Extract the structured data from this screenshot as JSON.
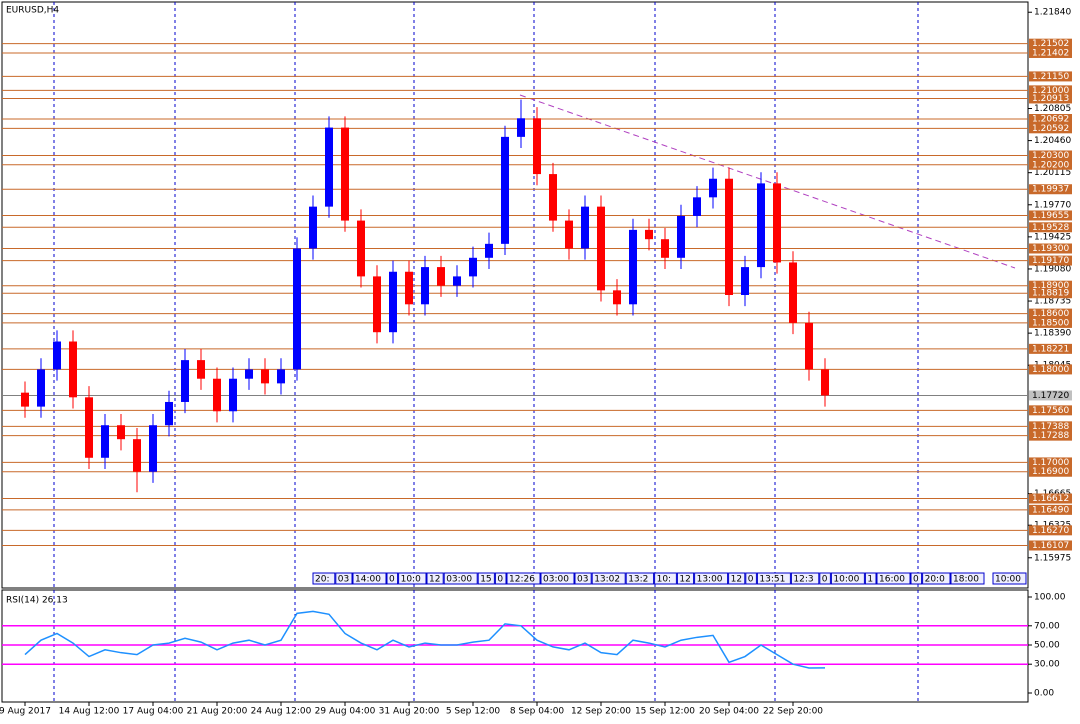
{
  "chart_data": {
    "type": "candlestick",
    "title": "EURUSD,H4",
    "categories": [
      "9 Aug 2017",
      null,
      null,
      null,
      "14 Aug 12:00",
      null,
      null,
      null,
      "17 Aug 04:00",
      null,
      null,
      null,
      "21 Aug 20:00",
      null,
      null,
      null,
      "24 Aug 12:00",
      null,
      null,
      null,
      "29 Aug 04:00",
      null,
      null,
      null,
      "31 Aug 20:00",
      null,
      null,
      null,
      "5 Sep 12:00",
      null,
      null,
      null,
      "8 Sep 04:00",
      null,
      null,
      null,
      "12 Sep 20:00",
      null,
      null,
      null,
      "15 Sep 12:00",
      null,
      null,
      null,
      "20 Sep 04:00",
      null,
      null,
      null,
      "22 Sep 20:00",
      null,
      null
    ],
    "open": [
      1.1775,
      1.176,
      1.18,
      1.183,
      1.177,
      1.1705,
      1.174,
      1.1725,
      1.169,
      1.174,
      1.1765,
      1.181,
      1.179,
      1.1755,
      1.179,
      1.18,
      1.1785,
      1.18,
      1.193,
      1.1975,
      1.206,
      1.196,
      1.19,
      1.184,
      1.1905,
      1.187,
      1.191,
      1.189,
      1.19,
      1.192,
      1.1935,
      1.205,
      1.207,
      1.201,
      1.196,
      1.193,
      1.1975,
      1.1885,
      1.187,
      1.195,
      1.194,
      1.192,
      1.1965,
      1.1985,
      1.2005,
      1.188,
      1.191,
      1.2,
      1.1915,
      1.185,
      1.18
    ],
    "high": [
      1.1787,
      1.1812,
      1.1842,
      1.1842,
      1.1782,
      1.1752,
      1.1752,
      1.1737,
      1.1752,
      1.1777,
      1.1822,
      1.1822,
      1.1802,
      1.1802,
      1.1812,
      1.1812,
      1.1812,
      1.1942,
      1.1987,
      1.2072,
      1.2072,
      1.1972,
      1.1912,
      1.1917,
      1.1917,
      1.1922,
      1.1922,
      1.1912,
      1.1932,
      1.1947,
      1.2062,
      1.209,
      1.2082,
      1.2022,
      1.1972,
      1.1987,
      1.1987,
      1.1897,
      1.1962,
      1.1962,
      1.1952,
      1.1977,
      1.1997,
      1.2017,
      1.2017,
      1.1922,
      1.2012,
      1.2012,
      1.1927,
      1.1862,
      1.1812
    ],
    "low": [
      1.1748,
      1.1748,
      1.1788,
      1.1758,
      1.1693,
      1.1693,
      1.1713,
      1.1668,
      1.1678,
      1.1728,
      1.1753,
      1.1778,
      1.1743,
      1.1743,
      1.1778,
      1.1773,
      1.1773,
      1.1788,
      1.1918,
      1.1963,
      1.1948,
      1.1888,
      1.1828,
      1.1828,
      1.1858,
      1.1858,
      1.1878,
      1.1878,
      1.1888,
      1.1908,
      1.1923,
      1.2038,
      1.1998,
      1.1948,
      1.1918,
      1.1918,
      1.1873,
      1.1858,
      1.1858,
      1.1928,
      1.1908,
      1.1908,
      1.1953,
      1.1973,
      1.1868,
      1.1868,
      1.1898,
      1.1903,
      1.1838,
      1.1788,
      1.176
    ],
    "close": [
      1.176,
      1.18,
      1.183,
      1.177,
      1.1705,
      1.174,
      1.1725,
      1.169,
      1.174,
      1.1765,
      1.181,
      1.179,
      1.1755,
      1.179,
      1.18,
      1.1785,
      1.18,
      1.193,
      1.1975,
      1.206,
      1.196,
      1.19,
      1.184,
      1.1905,
      1.187,
      1.191,
      1.189,
      1.19,
      1.192,
      1.1935,
      1.205,
      1.207,
      1.201,
      1.196,
      1.193,
      1.1975,
      1.1885,
      1.187,
      1.195,
      1.194,
      1.192,
      1.1965,
      1.1985,
      1.2005,
      1.188,
      1.191,
      1.2,
      1.1915,
      1.185,
      1.18,
      1.1772
    ],
    "up_color": "#0000ff",
    "down_color": "#ff0000",
    "ylim": [
      1.1565,
      1.2195
    ],
    "yticks": [
      {
        "value": 1.2184,
        "label": "1.21840"
      },
      {
        "value": 1.20805,
        "label": "1.20805"
      },
      {
        "value": 1.2046,
        "label": "1.20460"
      },
      {
        "value": 1.20115,
        "label": "1.20115"
      },
      {
        "value": 1.1977,
        "label": "1.19770"
      },
      {
        "value": 1.19425,
        "label": "1.19425"
      },
      {
        "value": 1.1908,
        "label": "1.19080"
      },
      {
        "value": 1.18735,
        "label": "1.18735"
      },
      {
        "value": 1.1839,
        "label": "1.18390"
      },
      {
        "value": 1.18045,
        "label": "1.18045"
      },
      {
        "value": 1.16665,
        "label": "1.16665"
      },
      {
        "value": 1.16325,
        "label": "1.16325"
      },
      {
        "value": 1.15975,
        "label": "1.15975"
      }
    ],
    "levels": [
      {
        "value": 1.21502,
        "label": "1.21502"
      },
      {
        "value": 1.21402,
        "label": "1.21402"
      },
      {
        "value": 1.2115,
        "label": "1.21150"
      },
      {
        "value": 1.21,
        "label": "1.21000"
      },
      {
        "value": 1.20913,
        "label": "1.20913"
      },
      {
        "value": 1.20692,
        "label": "1.20692"
      },
      {
        "value": 1.20592,
        "label": "1.20592"
      },
      {
        "value": 1.203,
        "label": "1.20300"
      },
      {
        "value": 1.202,
        "label": "1.20200"
      },
      {
        "value": 1.19937,
        "label": "1.19937"
      },
      {
        "value": 1.19655,
        "label": "1.19655"
      },
      {
        "value": 1.19528,
        "label": "1.19528"
      },
      {
        "value": 1.193,
        "label": "1.19300"
      },
      {
        "value": 1.1917,
        "label": "1.19170"
      },
      {
        "value": 1.189,
        "label": "1.18900"
      },
      {
        "value": 1.18819,
        "label": "1.18819"
      },
      {
        "value": 1.186,
        "label": "1.18600"
      },
      {
        "value": 1.185,
        "label": "1.18500"
      },
      {
        "value": 1.18221,
        "label": "1.18221"
      },
      {
        "value": 1.18,
        "label": "1.18000"
      },
      {
        "value": 1.1756,
        "label": "1.17560"
      },
      {
        "value": 1.17388,
        "label": "1.17388"
      },
      {
        "value": 1.17288,
        "label": "1.17288"
      },
      {
        "value": 1.17,
        "label": "1.17000"
      },
      {
        "value": 1.169,
        "label": "1.16900"
      },
      {
        "value": 1.16612,
        "label": "1.16612"
      },
      {
        "value": 1.1649,
        "label": "1.16490"
      },
      {
        "value": 1.1627,
        "label": "1.16270"
      },
      {
        "value": 1.16107,
        "label": "1.16107"
      }
    ],
    "level_color": "#c8692a",
    "current_price": {
      "value": 1.1772,
      "label": "1.17720"
    },
    "time_scale_tags": [
      "20:",
      "03",
      "14:00",
      "0",
      "10:0",
      "12",
      "03:00",
      "15",
      "0",
      "12:26",
      "03:00",
      "03",
      "13:02",
      "13:2",
      "10:",
      "12",
      "13:00",
      "12",
      "0",
      "13:51",
      "12:3",
      "0",
      "10:00",
      "1",
      "16:00",
      "0",
      "20:0",
      "18:00",
      "10:00"
    ],
    "rsi": {
      "title": "RSI(14) 26.13",
      "color": "#1e90ff",
      "level_color": "#ff00ff",
      "values": [
        40,
        55,
        62,
        52,
        38,
        45,
        42,
        40,
        50,
        52,
        57,
        53,
        45,
        52,
        55,
        50,
        55,
        83,
        85,
        82,
        62,
        52,
        45,
        55,
        48,
        52,
        50,
        50,
        53,
        55,
        72,
        70,
        55,
        48,
        45,
        52,
        42,
        40,
        55,
        52,
        48,
        55,
        58,
        60,
        32,
        38,
        50,
        40,
        30,
        26,
        26.13
      ],
      "ylim": [
        0,
        100
      ],
      "yticks": [
        {
          "value": 100,
          "label": "100.00"
        },
        {
          "value": 70,
          "label": "70.00"
        },
        {
          "value": 50,
          "label": "50.00"
        },
        {
          "value": 30,
          "label": "30.00"
        },
        {
          "value": 0,
          "label": "0.00"
        }
      ],
      "levels": [
        70,
        50,
        30
      ]
    }
  }
}
